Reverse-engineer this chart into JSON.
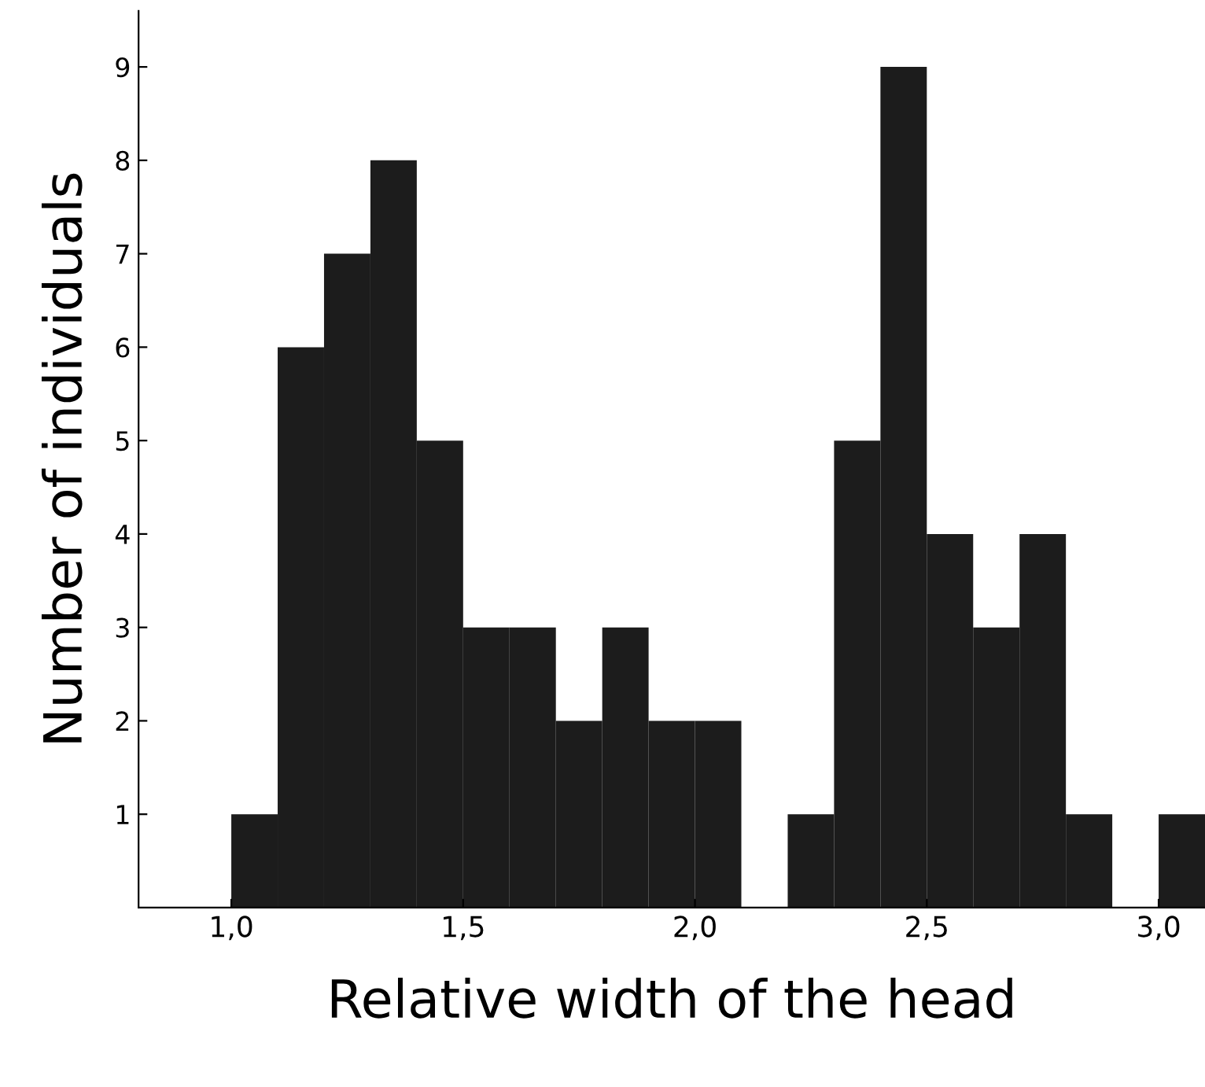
{
  "chart_data": {
    "type": "histogram",
    "xlabel": "Relative width of the head",
    "ylabel": "Number of individuals",
    "bins": [
      1.0,
      1.1,
      1.2,
      1.3,
      1.4,
      1.5,
      1.6,
      1.7,
      1.8,
      1.9,
      2.0,
      2.1,
      2.2,
      2.3,
      2.4,
      2.5,
      2.6,
      2.7,
      2.8,
      2.9,
      3.0,
      3.1
    ],
    "values": [
      1,
      6,
      7,
      8,
      5,
      3,
      3,
      2,
      3,
      2,
      2,
      0,
      1,
      5,
      9,
      4,
      3,
      4,
      1,
      0,
      1
    ],
    "color": "#1c1c1c",
    "xlim": [
      0.8,
      3.1
    ],
    "xticks": [
      {
        "value": 1.0,
        "label": "1,0"
      },
      {
        "value": 1.5,
        "label": "1,5"
      },
      {
        "value": 2.0,
        "label": "2,0"
      },
      {
        "value": 2.5,
        "label": "2,5"
      },
      {
        "value": 3.0,
        "label": "3,0"
      }
    ],
    "ylim": [
      0,
      9.6
    ],
    "yticks": [
      1,
      2,
      3,
      4,
      5,
      6,
      7,
      8,
      9
    ],
    "grid": false,
    "legend": false
  }
}
